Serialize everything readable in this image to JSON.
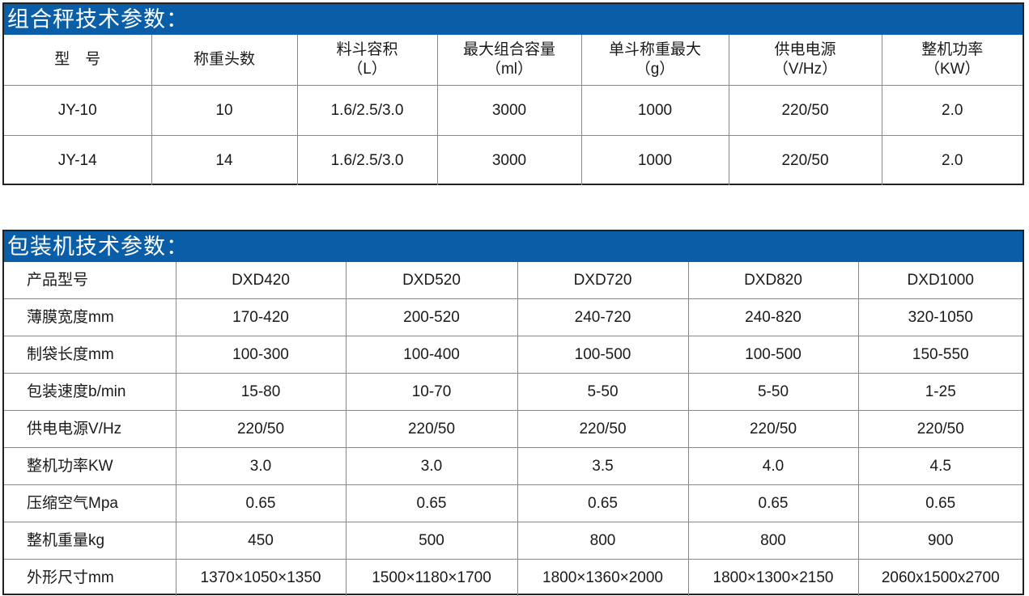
{
  "scale_table": {
    "title": "组合秤技术参数：",
    "headers": [
      [
        "型　号",
        ""
      ],
      [
        "称重头数",
        ""
      ],
      [
        "料斗容积",
        "（L）"
      ],
      [
        "最大组合容量",
        "（ml）"
      ],
      [
        "单斗称重最大",
        "（g）"
      ],
      [
        "供电电源",
        "（V/Hz）"
      ],
      [
        "整机功率",
        "（KW）"
      ]
    ],
    "rows": [
      [
        "JY-10",
        "10",
        "1.6/2.5/3.0",
        "3000",
        "1000",
        "220/50",
        "2.0"
      ],
      [
        "JY-14",
        "14",
        "1.6/2.5/3.0",
        "3000",
        "1000",
        "220/50",
        "2.0"
      ]
    ]
  },
  "packer_table": {
    "title": "包装机技术参数：",
    "rows": [
      [
        "产品型号",
        "DXD420",
        "DXD520",
        "DXD720",
        "DXD820",
        "DXD1000"
      ],
      [
        "薄膜宽度mm",
        "170-420",
        "200-520",
        "240-720",
        "240-820",
        "320-1050"
      ],
      [
        "制袋长度mm",
        "100-300",
        "100-400",
        "100-500",
        "100-500",
        "150-550"
      ],
      [
        "包装速度b/min",
        "15-80",
        "10-70",
        "5-50",
        "5-50",
        "1-25"
      ],
      [
        "供电电源V/Hz",
        "220/50",
        "220/50",
        "220/50",
        "220/50",
        "220/50"
      ],
      [
        "整机功率KW",
        "3.0",
        "3.0",
        "3.5",
        "4.0",
        "4.5"
      ],
      [
        "压缩空气Mpa",
        "0.65",
        "0.65",
        "0.65",
        "0.65",
        "0.65"
      ],
      [
        "整机重量kg",
        "450",
        "500",
        "800",
        "800",
        "900"
      ],
      [
        "外形尺寸mm",
        "1370×1050×1350",
        "1500×1180×1700",
        "1800×1360×2000",
        "1800×1300×2150",
        "2060x1500x2700"
      ]
    ]
  },
  "colors": {
    "header_bar": "#0a5ea8"
  }
}
